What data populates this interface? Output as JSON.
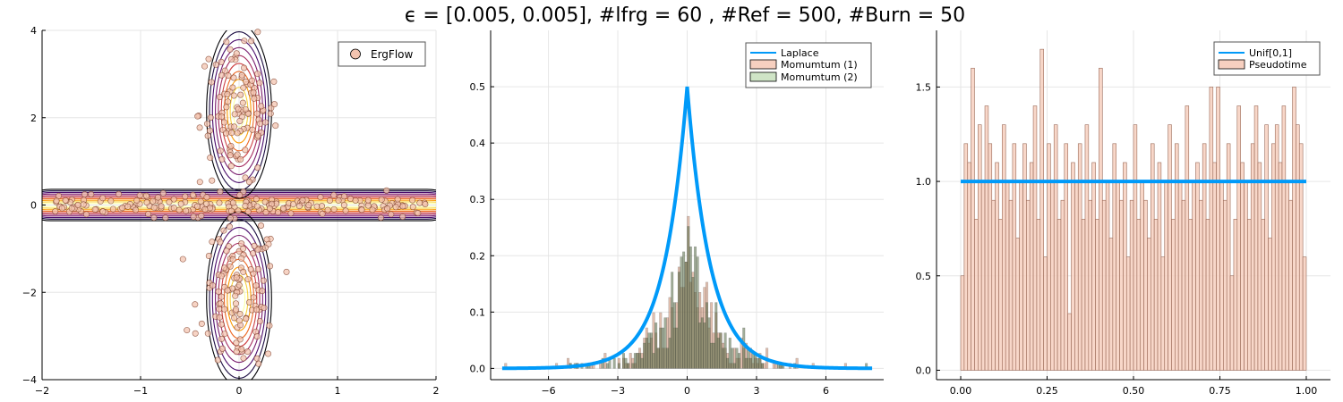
{
  "suptitle": "ϵ = [0.005, 0.005], #lfrg = 60 , #Ref = 500, #Burn = 50",
  "chart_data": [
    {
      "type": "scatter",
      "xlim": [
        -2,
        2
      ],
      "ylim": [
        -4,
        4
      ],
      "xticks": [
        "−2",
        "−1",
        "0",
        "1",
        "2"
      ],
      "yticks": [
        "−4",
        "−2",
        "0",
        "2",
        "4"
      ],
      "grid": true,
      "legend": {
        "placement": "top-right",
        "entries": [
          {
            "label": "ErgFlow",
            "color": "#f3c4b0"
          }
        ]
      },
      "background": "contour plot of a cross-shaped density (horizontal band along y = 0, vertical lobes along x = 0)",
      "point_clusters": [
        {
          "shape": "band",
          "axis": "horizontal",
          "center": [
            0,
            0
          ],
          "spread": [
            1.9,
            0.12
          ],
          "count": 200
        },
        {
          "shape": "lobe",
          "axis": "vertical",
          "center": [
            0,
            2.1
          ],
          "spread": [
            0.2,
            0.85
          ],
          "count": 120
        },
        {
          "shape": "lobe",
          "axis": "vertical",
          "center": [
            0,
            -2.1
          ],
          "spread": [
            0.2,
            0.85
          ],
          "count": 120
        }
      ]
    },
    {
      "type": "bar",
      "xlim": [
        -8.5,
        8.5
      ],
      "ylim": [
        -0.02,
        0.6
      ],
      "xticks": [
        "−6",
        "−3",
        "0",
        "3",
        "6"
      ],
      "yticks": [
        "0.0",
        "0.1",
        "0.2",
        "0.3",
        "0.4",
        "0.5"
      ],
      "grid": true,
      "legend": {
        "placement": "top-right",
        "entries": [
          {
            "label": "Laplace",
            "kind": "line",
            "color": "#009af9"
          },
          {
            "label": "Momumtum (1)",
            "kind": "patch",
            "color": "#f7d0c0"
          },
          {
            "label": "Momumtum (2)",
            "kind": "patch",
            "color": "#cfe4c6"
          }
        ]
      },
      "curve": {
        "name": "Laplace",
        "formula": "0.5*exp(-|x|)",
        "x_range": [
          -8,
          8
        ]
      },
      "histograms": [
        {
          "name": "Momumtum (1)",
          "shape": "Laplace(0,1)",
          "samples": 500
        },
        {
          "name": "Momumtum (2)",
          "shape": "Laplace(0,1)",
          "samples": 500
        }
      ]
    },
    {
      "type": "bar",
      "xlim": [
        -0.07,
        1.07
      ],
      "ylim": [
        -0.05,
        1.8
      ],
      "xticks": [
        "0.00",
        "0.25",
        "0.50",
        "0.75",
        "1.00"
      ],
      "yticks": [
        "0.0",
        "0.5",
        "1.0",
        "1.5"
      ],
      "grid": true,
      "legend": {
        "placement": "top-right",
        "entries": [
          {
            "label": "Unif[0,1]",
            "kind": "line",
            "color": "#009af9"
          },
          {
            "label": "Pseudotime",
            "kind": "patch",
            "color": "#f7d0c0"
          }
        ]
      },
      "uniform_density": 1.0,
      "bin_width": 0.01,
      "densities": [
        0.5,
        1.2,
        1.1,
        1.6,
        0.8,
        1.3,
        1.0,
        1.4,
        1.2,
        0.9,
        1.1,
        0.8,
        1.3,
        1.0,
        0.9,
        1.2,
        0.7,
        1.0,
        1.2,
        0.9,
        1.1,
        1.4,
        0.8,
        1.7,
        0.6,
        1.2,
        1.0,
        1.3,
        0.8,
        0.9,
        1.2,
        0.3,
        1.1,
        1.0,
        1.2,
        0.8,
        1.3,
        0.9,
        1.1,
        0.8,
        1.6,
        0.9,
        1.0,
        0.7,
        1.2,
        1.0,
        0.9,
        1.1,
        0.6,
        0.9,
        1.3,
        0.8,
        1.0,
        0.9,
        0.7,
        1.2,
        0.8,
        1.1,
        0.6,
        1.0,
        1.3,
        0.8,
        1.2,
        1.0,
        0.9,
        1.4,
        0.8,
        1.0,
        1.1,
        0.9,
        1.2,
        0.8,
        1.5,
        1.1,
        1.5,
        1.0,
        0.9,
        1.2,
        0.5,
        0.8,
        1.4,
        1.1,
        1.0,
        0.8,
        1.2,
        1.4,
        1.1,
        0.8,
        1.3,
        0.7,
        1.2,
        1.3,
        1.1,
        1.4,
        1.0,
        0.9,
        1.5,
        1.3,
        1.2,
        0.6
      ]
    }
  ]
}
